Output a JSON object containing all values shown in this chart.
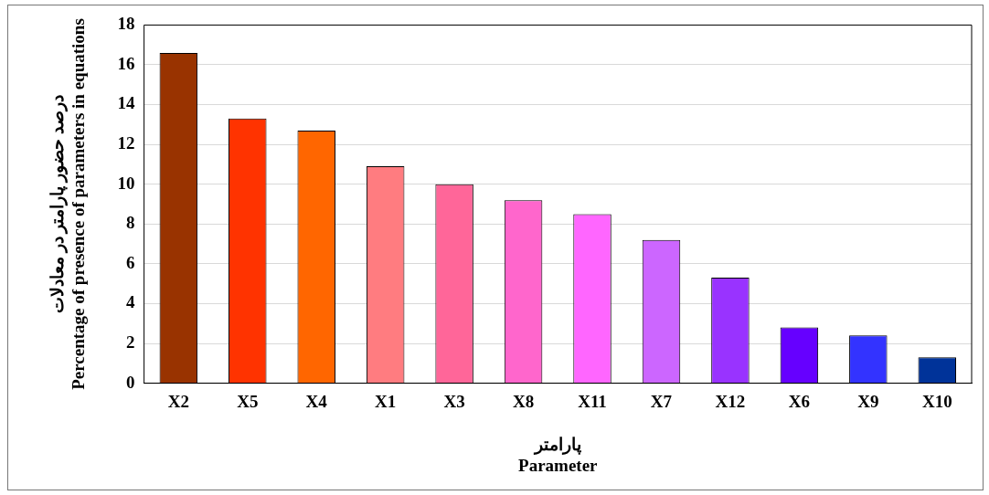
{
  "chart_data": {
    "type": "bar",
    "xlabel": "پارامتر\nParameter",
    "ylabel": "درصد حضور پارامتر در معادلات\nPercentage of presence of parameters in equations",
    "categories": [
      "X2",
      "X5",
      "X4",
      "X1",
      "X3",
      "X8",
      "X11",
      "X7",
      "X12",
      "X6",
      "X9",
      "X10"
    ],
    "values": [
      16.6,
      13.3,
      12.7,
      10.9,
      10,
      9.2,
      8.5,
      7.2,
      5.3,
      2.8,
      2.4,
      1.3
    ],
    "colors": [
      "#993300",
      "#ff3300",
      "#ff6600",
      "#ff7c80",
      "#ff6699",
      "#ff66cc",
      "#ff66ff",
      "#cc66ff",
      "#9933ff",
      "#6600ff",
      "#3333ff",
      "#003399"
    ],
    "ylim": [
      0,
      18
    ],
    "yticks": [
      0,
      2,
      4,
      6,
      8,
      10,
      12,
      14,
      16,
      18
    ],
    "grid": "y",
    "legend": false
  }
}
